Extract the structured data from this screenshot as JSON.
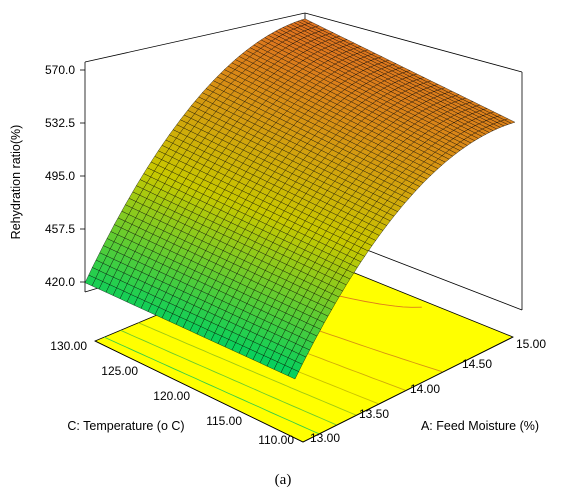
{
  "chart_data": {
    "type": "surface3d",
    "caption": "(a)",
    "zlabel": "Rehydration ratio(%)",
    "xlabel": "A: Feed Moisture (%)",
    "ylabel": "C: Temperature (o C)",
    "x_ticks": [
      "13.00",
      "13.50",
      "14.00",
      "14.50",
      "15.00"
    ],
    "y_ticks": [
      "110.00",
      "115.00",
      "120.00",
      "125.00",
      "130.00"
    ],
    "z_ticks": [
      "420.0",
      "457.5",
      "495.0",
      "532.5",
      "570.0"
    ],
    "xlim": [
      13.0,
      15.0
    ],
    "ylim": [
      110.0,
      130.0
    ],
    "zlim": [
      420.0,
      570.0
    ],
    "corner_values": [
      {
        "A": 13.0,
        "C": 130.0,
        "ratio": 428.0
      },
      {
        "A": 13.0,
        "C": 110.0,
        "ratio": 420.0
      },
      {
        "A": 15.0,
        "C": 130.0,
        "ratio": 568.0
      },
      {
        "A": 15.0,
        "C": 110.0,
        "ratio": 555.0
      }
    ],
    "colors": {
      "floor": "#ffff00",
      "low": "#00d060",
      "mid": "#c8c800",
      "high": "#e07020",
      "mesh": "#000000"
    }
  }
}
